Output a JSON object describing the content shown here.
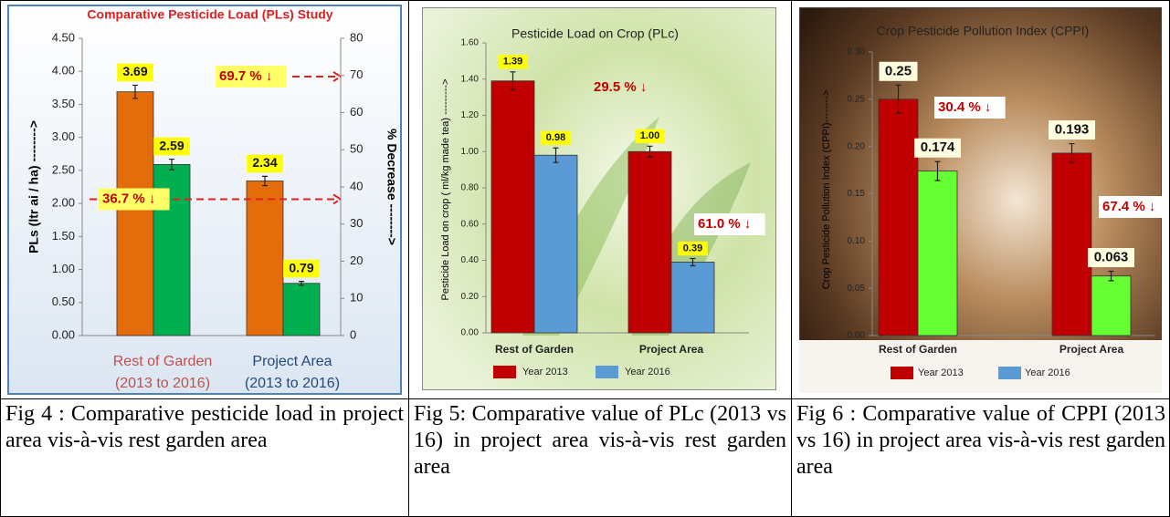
{
  "chart_data": [
    {
      "type": "bar",
      "title": "Comparative Pesticide Load (PLs) Study",
      "y_label": "PLs (ltr ai / ha) -------->",
      "y2_label": "% Decrease -------->",
      "categories": [
        [
          "Rest of Garden",
          "(2013 to 2016)"
        ],
        [
          "Project Area",
          "(2013 to 2016)"
        ]
      ],
      "category_colors": [
        "#c0504d",
        "#1f497d"
      ],
      "series": [
        {
          "color": "#e46c0a",
          "values": [
            3.69,
            2.34
          ],
          "errors": [
            0.1,
            0.07
          ]
        },
        {
          "color": "#00b050",
          "values": [
            2.59,
            0.79
          ],
          "errors": [
            0.08,
            0.03
          ]
        }
      ],
      "ylim": [
        0,
        4.5
      ],
      "yticks": [
        {
          "value": 0,
          "label": "0.00"
        },
        {
          "value": 0.5,
          "label": "0.50"
        },
        {
          "value": 1,
          "label": "1.00"
        },
        {
          "value": 1.5,
          "label": "1.50"
        },
        {
          "value": 2,
          "label": "2.00"
        },
        {
          "value": 2.5,
          "label": "2.50"
        },
        {
          "value": 3,
          "label": "3.00"
        },
        {
          "value": 3.5,
          "label": "3.50"
        },
        {
          "value": 4,
          "label": "4.00"
        },
        {
          "value": 4.5,
          "label": "4.50"
        }
      ],
      "y2lim": [
        0,
        80
      ],
      "y2ticks": [
        0,
        10,
        20,
        30,
        40,
        50,
        60,
        70,
        80
      ],
      "annotations": [
        {
          "text": "69.7 % ↓",
          "y2": 69.7
        },
        {
          "text": "36.7 % ↓",
          "y2": 36.7
        }
      ]
    },
    {
      "type": "bar",
      "title": "Pesticide Load on Crop (PLc)",
      "y_label": "Pesticide Load on crop ( ml/kg made tea) --------->",
      "categories": [
        "Rest of Garden",
        "Project Area"
      ],
      "series": [
        {
          "name": "Year 2013",
          "color": "#c00000",
          "values": [
            1.39,
            1.0
          ],
          "value_labels": [
            "1.39",
            "1.00"
          ],
          "errors": [
            0.05,
            0.03
          ]
        },
        {
          "name": "Year 2016",
          "color": "#5b9bd5",
          "values": [
            0.98,
            0.39
          ],
          "value_labels": [
            "0.98",
            "0.39"
          ],
          "errors": [
            0.04,
            0.02
          ]
        }
      ],
      "ylim": [
        0,
        1.6
      ],
      "yticks": [
        {
          "value": 0,
          "label": "0.00"
        },
        {
          "value": 0.2,
          "label": "0.20"
        },
        {
          "value": 0.4,
          "label": "0.40"
        },
        {
          "value": 0.6,
          "label": "0.60"
        },
        {
          "value": 0.8,
          "label": "0.80"
        },
        {
          "value": 1,
          "label": "1.00"
        },
        {
          "value": 1.2,
          "label": "1.20"
        },
        {
          "value": 1.4,
          "label": "1.40"
        },
        {
          "value": 1.6,
          "label": "1.60"
        }
      ],
      "annotations": [
        {
          "text": "29.5 % ↓"
        },
        {
          "text": "61.0 % ↓"
        }
      ]
    },
    {
      "type": "bar",
      "title": "Crop Pesticide  Pollution Index (CPPI)",
      "y_label": "Crop Pesticide Pollution Index (CPPI)-------->",
      "categories": [
        "Rest of Garden",
        "Project Area"
      ],
      "series": [
        {
          "name": "Year 2013",
          "color": "#c00000",
          "values": [
            0.25,
            0.193
          ],
          "errors": [
            0.015,
            0.01
          ]
        },
        {
          "name": "Year 2016",
          "color": "#66ff33",
          "legend_color": "#5b9bd5",
          "values": [
            0.174,
            0.063
          ],
          "errors": [
            0.01,
            0.005
          ]
        }
      ],
      "ylim": [
        0,
        0.3
      ],
      "yticks": [
        {
          "value": 0,
          "label": "0.00"
        },
        {
          "value": 0.05,
          "label": "0.05"
        },
        {
          "value": 0.1,
          "label": "0.10"
        },
        {
          "value": 0.15,
          "label": "0.15"
        },
        {
          "value": 0.2,
          "label": "0.20"
        },
        {
          "value": 0.25,
          "label": "0.25"
        },
        {
          "value": 0.3,
          "label": "0.30"
        }
      ],
      "annotations": [
        {
          "text": "30.4 % ↓"
        },
        {
          "text": "67.4 % ↓"
        }
      ]
    }
  ],
  "captions": [
    "Fig 4 : Comparative pesticide load in project area vis-à-vis rest garden area",
    "Fig 5: Comparative value of PLc (2013 vs 16) in project area vis-à-vis rest garden area",
    "Fig 6 : Comparative value of CPPI (2013 vs 16) in project area vis-à-vis rest garden area"
  ]
}
